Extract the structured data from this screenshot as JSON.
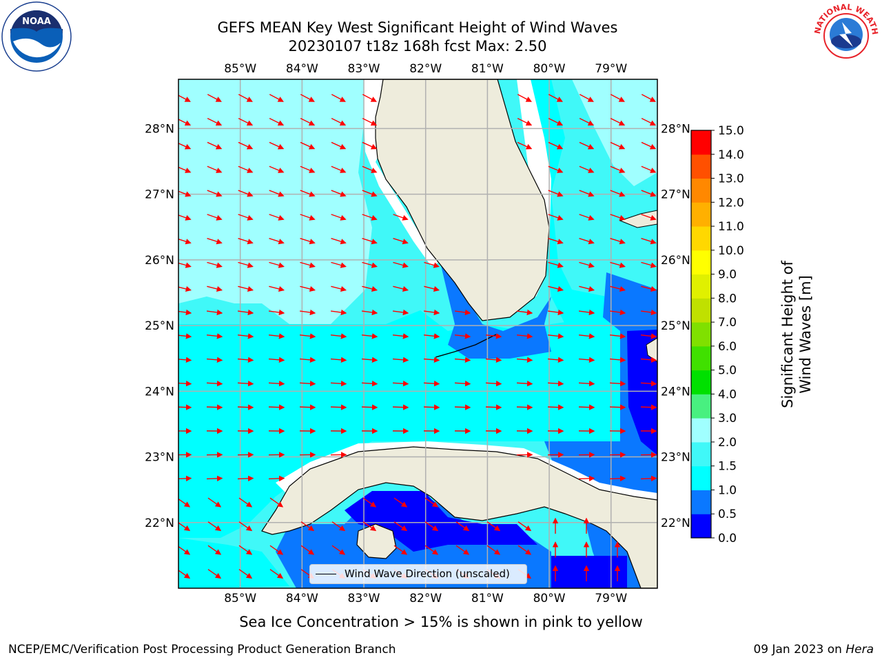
{
  "header": {
    "title_line1": "GEFS MEAN Key West Significant Height of Wind Waves",
    "title_line2": "20230107 t18z 168h fcst   Max: 2.50"
  },
  "map": {
    "lon_ticks": [
      "85°W",
      "84°W",
      "83°W",
      "82°W",
      "81°W",
      "80°W",
      "79°W"
    ],
    "lat_ticks": [
      "28°N",
      "27°N",
      "26°N",
      "25°N",
      "24°N",
      "23°N",
      "22°N"
    ],
    "lon_range": [
      -86.0,
      -78.25
    ],
    "lat_range": [
      21.0,
      28.75
    ],
    "land_color": "#eeecdc",
    "arrow_color": "#ff0000"
  },
  "legend": {
    "label": "Wind Wave Direction (unscaled)"
  },
  "colorbar": {
    "label": "Significant Height of Wind Waves [m]",
    "ticks": [
      "0.0",
      "0.5",
      "1.0",
      "1.5",
      "2.0",
      "3.0",
      "4.0",
      "5.0",
      "6.0",
      "7.0",
      "8.0",
      "9.0",
      "10.0",
      "11.0",
      "12.0",
      "13.0",
      "14.0",
      "15.0"
    ],
    "colors": [
      "#0000ff",
      "#0a78ff",
      "#00ffff",
      "#40f8f8",
      "#a0ffff",
      "#48f080",
      "#00e000",
      "#40e000",
      "#80e000",
      "#c0e000",
      "#e0f000",
      "#ffff00",
      "#ffd800",
      "#ffb000",
      "#ff8800",
      "#ff5000",
      "#ff0000"
    ]
  },
  "notes": {
    "sea_ice": "Sea Ice Concentration > 15% is shown in pink to yellow"
  },
  "footer": {
    "left": "NCEP/EMC/Verification Post Processing Product Generation Branch",
    "right_date": "09 Jan 2023 on ",
    "right_host": "Hera"
  },
  "logos": {
    "noaa": "NOAA",
    "nws": "NATIONAL WEATHER SERVICE"
  }
}
